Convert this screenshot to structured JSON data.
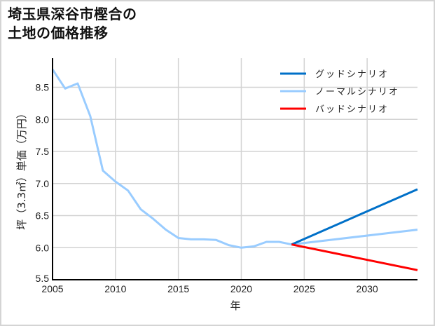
{
  "title": {
    "line1": "埼玉県深谷市樫合の",
    "line2": "土地の価格推移"
  },
  "chart_data": {
    "type": "line",
    "title": "埼玉県深谷市樫合の土地の価格推移",
    "xlabel": "年",
    "ylabel": "坪（3.3㎡）単価（万円）",
    "xlim": [
      2005,
      2034
    ],
    "ylim": [
      5.5,
      8.9
    ],
    "x_ticks": [
      2005,
      2010,
      2015,
      2020,
      2025,
      2030
    ],
    "y_ticks": [
      5.5,
      6.0,
      6.5,
      7.0,
      7.5,
      8.0,
      8.5
    ],
    "x_tick_labels": [
      "2005",
      "2010",
      "2015",
      "2020",
      "2025",
      "2030"
    ],
    "y_tick_labels": [
      "5.5",
      "6.0",
      "6.5",
      "7.0",
      "7.5",
      "8.0",
      "8.5"
    ],
    "grid": true,
    "legend_position": "upper right",
    "series": [
      {
        "name": "グッドシナリオ",
        "color": "#0070c8",
        "x": [
          2024,
          2034
        ],
        "values": [
          6.05,
          6.91
        ]
      },
      {
        "name": "ノーマルシナリオ",
        "color": "#99ccff",
        "x": [
          2005,
          2006,
          2007,
          2008,
          2009,
          2010,
          2011,
          2012,
          2013,
          2014,
          2015,
          2016,
          2017,
          2018,
          2019,
          2020,
          2021,
          2022,
          2023,
          2024,
          2034
        ],
        "values": [
          8.78,
          8.48,
          8.56,
          8.05,
          7.2,
          7.03,
          6.89,
          6.6,
          6.45,
          6.28,
          6.15,
          6.13,
          6.13,
          6.12,
          6.04,
          6.0,
          6.02,
          6.09,
          6.09,
          6.05,
          6.28
        ]
      },
      {
        "name": "バッドシナリオ",
        "color": "#ff0000",
        "x": [
          2024,
          2034
        ],
        "values": [
          6.05,
          5.65
        ]
      }
    ]
  }
}
